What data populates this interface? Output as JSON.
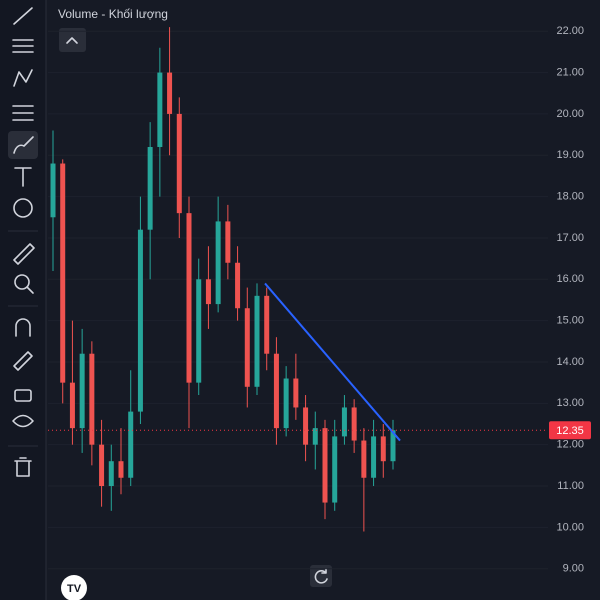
{
  "legend": "Volume - Khối lượng",
  "chart_data": {
    "type": "candlestick",
    "up_color": "#26a69a",
    "down_color": "#ef5350",
    "ylim": [
      8.63,
      22.32
    ],
    "yticks": [
      {
        "value": 22,
        "label": "22.00"
      },
      {
        "value": 21,
        "label": "21.00"
      },
      {
        "value": 20,
        "label": "20.00"
      },
      {
        "value": 19,
        "label": "19.00"
      },
      {
        "value": 18,
        "label": "18.00"
      },
      {
        "value": 17,
        "label": "17.00"
      },
      {
        "value": 16,
        "label": "16.00"
      },
      {
        "value": 15,
        "label": "15.00"
      },
      {
        "value": 14,
        "label": "14.00"
      },
      {
        "value": 13,
        "label": "13.00"
      },
      {
        "value": 12,
        "label": "12.00"
      },
      {
        "value": 11,
        "label": "11.00"
      },
      {
        "value": 10,
        "label": "10.00"
      },
      {
        "value": 9,
        "label": "9.00"
      }
    ],
    "last_price": 12.35,
    "trendline": [
      15.9,
      12.1
    ],
    "candles": [
      [
        17.5,
        19.6,
        16.2,
        18.8
      ],
      [
        18.8,
        18.9,
        13.0,
        13.5
      ],
      [
        13.5,
        15.0,
        12.0,
        12.4
      ],
      [
        12.4,
        14.8,
        11.8,
        14.2
      ],
      [
        14.2,
        14.5,
        11.5,
        12.0
      ],
      [
        12.0,
        12.6,
        10.5,
        11.0
      ],
      [
        11.0,
        12.0,
        10.4,
        11.6
      ],
      [
        11.6,
        12.4,
        10.8,
        11.2
      ],
      [
        11.2,
        13.8,
        11.0,
        12.8
      ],
      [
        12.8,
        18.0,
        12.5,
        17.2
      ],
      [
        17.2,
        19.8,
        16.0,
        19.2
      ],
      [
        19.2,
        21.6,
        18.0,
        21.0
      ],
      [
        21.0,
        22.1,
        19.0,
        20.0
      ],
      [
        20.0,
        20.4,
        17.0,
        17.6
      ],
      [
        17.6,
        18.0,
        12.4,
        13.5
      ],
      [
        13.5,
        16.5,
        13.2,
        16.0
      ],
      [
        16.0,
        16.8,
        14.8,
        15.4
      ],
      [
        15.4,
        18.0,
        15.2,
        17.4
      ],
      [
        17.4,
        17.8,
        16.0,
        16.4
      ],
      [
        16.4,
        16.8,
        15.0,
        15.3
      ],
      [
        15.3,
        15.8,
        12.9,
        13.4
      ],
      [
        13.4,
        15.9,
        13.2,
        15.6
      ],
      [
        15.6,
        15.8,
        13.8,
        14.2
      ],
      [
        14.2,
        14.6,
        12.0,
        12.4
      ],
      [
        12.4,
        13.9,
        12.2,
        13.6
      ],
      [
        13.6,
        14.2,
        12.6,
        12.9
      ],
      [
        12.9,
        13.2,
        11.6,
        12.0
      ],
      [
        12.0,
        12.8,
        11.4,
        12.4
      ],
      [
        12.4,
        12.6,
        10.2,
        10.6
      ],
      [
        10.6,
        12.6,
        10.4,
        12.2
      ],
      [
        12.2,
        13.2,
        12.0,
        12.9
      ],
      [
        12.9,
        13.1,
        11.8,
        12.1
      ],
      [
        12.1,
        12.4,
        9.9,
        11.2
      ],
      [
        11.2,
        12.6,
        11.0,
        12.2
      ],
      [
        12.2,
        12.5,
        11.2,
        11.6
      ],
      [
        11.6,
        12.6,
        11.4,
        12.35
      ]
    ]
  }
}
